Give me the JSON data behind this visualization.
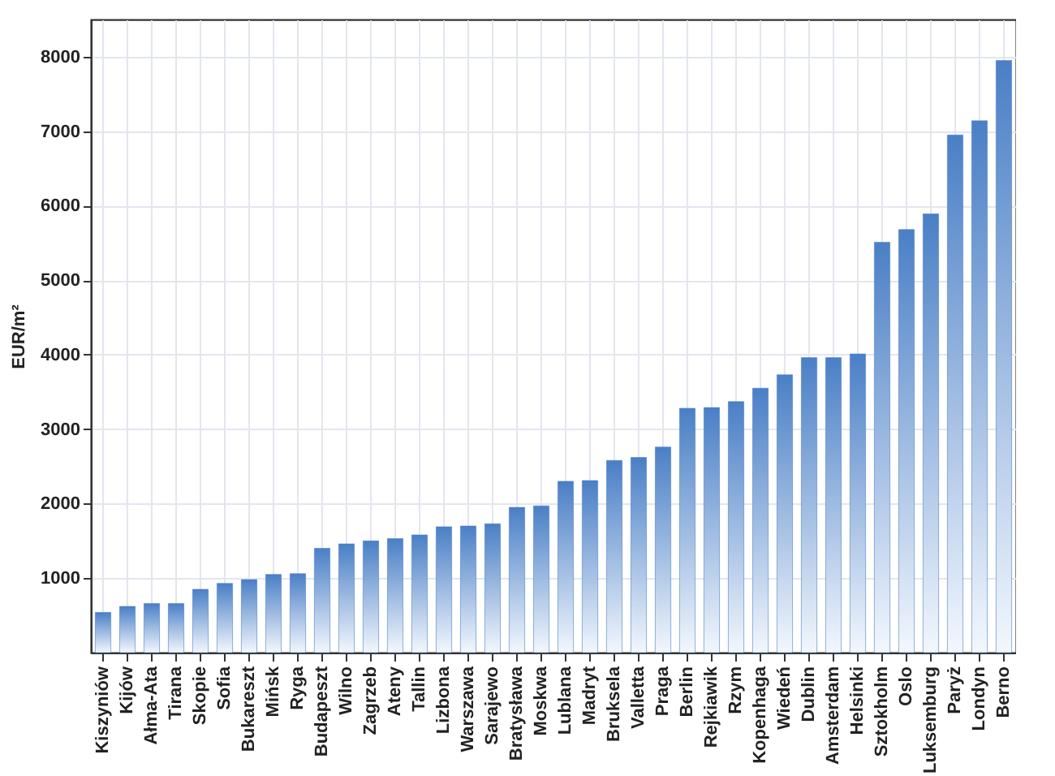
{
  "chart_data": {
    "type": "bar",
    "ylabel": "EUR/m²",
    "categories": [
      "Kiszyniów",
      "Kijów",
      "Ałma-Ata",
      "Tirana",
      "Skopie",
      "Sofia",
      "Bukareszt",
      "Mińsk",
      "Ryga",
      "Budapeszt",
      "Wilno",
      "Zagrzeb",
      "Ateny",
      "Tallin",
      "Lizbona",
      "Warszawa",
      "Sarajewo",
      "Bratysława",
      "Moskwa",
      "Lublana",
      "Madryt",
      "Bruksela",
      "Valletta",
      "Praga",
      "Berlin",
      "Rejkiawik",
      "Rzym",
      "Kopenhaga",
      "Wiedeń",
      "Dublin",
      "Amsterdam",
      "Helsinki",
      "Sztokholm",
      "Oslo",
      "Luksemburg",
      "Paryż",
      "Londyn",
      "Berno"
    ],
    "values": [
      540,
      620,
      660,
      660,
      850,
      930,
      980,
      1050,
      1060,
      1400,
      1460,
      1500,
      1530,
      1580,
      1690,
      1700,
      1730,
      1950,
      1970,
      2300,
      2310,
      2580,
      2620,
      2760,
      3280,
      3290,
      3370,
      3550,
      3730,
      3960,
      3960,
      4010,
      5510,
      5680,
      5890,
      6950,
      7140,
      7950
    ],
    "color": "#4a7fc6",
    "ylim": [
      0,
      8500
    ],
    "yticks": [
      1000,
      2000,
      3000,
      4000,
      5000,
      6000,
      7000,
      8000
    ],
    "grid": true
  }
}
